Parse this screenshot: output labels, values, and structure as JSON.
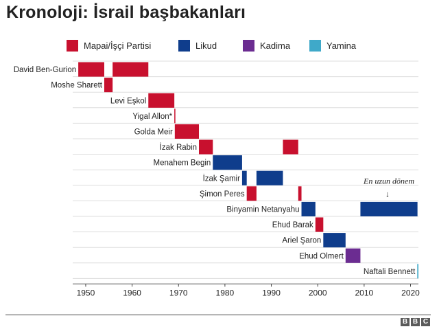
{
  "title": "Kronoloji: İsrail başbakanları",
  "legend": [
    {
      "label": "Mapai/İşçi Partisi",
      "party": "mapai"
    },
    {
      "label": "Likud",
      "party": "likud"
    },
    {
      "label": "Kadima",
      "party": "kadima"
    },
    {
      "label": "Yamina",
      "party": "yamina"
    }
  ],
  "colors": {
    "mapai": "#c8102e",
    "likud": "#0f3d8c",
    "kadima": "#6b2c91",
    "yamina": "#3fa9c9",
    "grid": "#dddddd",
    "axis": "#444444"
  },
  "chart_data": {
    "type": "timeline",
    "title": "Kronoloji: İsrail başbakanları",
    "xlim": [
      1947.2,
      2021.7
    ],
    "xticks": [
      1950,
      1960,
      1970,
      1980,
      1990,
      2000,
      2010,
      2020
    ],
    "rows": [
      {
        "name": "David Ben-Gurion",
        "terms": [
          {
            "start": 1948.4,
            "end": 1954.0,
            "party": "mapai"
          },
          {
            "start": 1955.8,
            "end": 1963.5,
            "party": "mapai"
          }
        ]
      },
      {
        "name": "Moshe Sharett",
        "terms": [
          {
            "start": 1954.0,
            "end": 1955.8,
            "party": "mapai"
          }
        ]
      },
      {
        "name": "Levi Eşkol",
        "terms": [
          {
            "start": 1963.5,
            "end": 1969.1,
            "party": "mapai"
          }
        ]
      },
      {
        "name": "Yigal Allon",
        "suffix": "*",
        "terms": [
          {
            "start": 1969.1,
            "end": 1969.2,
            "party": "mapai"
          }
        ]
      },
      {
        "name": "Golda Meir",
        "terms": [
          {
            "start": 1969.2,
            "end": 1974.4,
            "party": "mapai"
          }
        ]
      },
      {
        "name": "İzak Rabin",
        "terms": [
          {
            "start": 1974.4,
            "end": 1977.4,
            "party": "mapai"
          },
          {
            "start": 1992.5,
            "end": 1995.8,
            "party": "mapai"
          }
        ]
      },
      {
        "name": "Menahem Begin",
        "terms": [
          {
            "start": 1977.4,
            "end": 1983.7,
            "party": "likud"
          }
        ]
      },
      {
        "name": "İzak Şamir",
        "terms": [
          {
            "start": 1983.7,
            "end": 1984.7,
            "party": "likud"
          },
          {
            "start": 1986.8,
            "end": 1992.5,
            "party": "likud"
          }
        ]
      },
      {
        "name": "Şimon Peres",
        "terms": [
          {
            "start": 1984.7,
            "end": 1986.8,
            "party": "mapai"
          },
          {
            "start": 1995.8,
            "end": 1996.5,
            "party": "mapai"
          }
        ]
      },
      {
        "name": "Binyamin Netanyahu",
        "terms": [
          {
            "start": 1996.5,
            "end": 1999.5,
            "party": "likud"
          },
          {
            "start": 2009.2,
            "end": 2021.5,
            "party": "likud"
          }
        ]
      },
      {
        "name": "Ehud Barak",
        "terms": [
          {
            "start": 1999.5,
            "end": 2001.2,
            "party": "mapai"
          }
        ]
      },
      {
        "name": "Ariel Şaron",
        "terms": [
          {
            "start": 2001.2,
            "end": 2006.0,
            "party": "likud"
          }
        ]
      },
      {
        "name": "Ehud Olmert",
        "terms": [
          {
            "start": 2006.0,
            "end": 2009.2,
            "party": "kadima"
          }
        ]
      },
      {
        "name": "Naftali Bennett",
        "terms": [
          {
            "start": 2021.45,
            "end": 2021.7,
            "party": "yamina"
          }
        ]
      }
    ],
    "annotation": {
      "text": "En uzun dönem",
      "arrow": "↓",
      "row": "Binyamin Netanyahu"
    }
  },
  "footer": {
    "logo_letters": [
      "B",
      "B",
      "C"
    ]
  }
}
